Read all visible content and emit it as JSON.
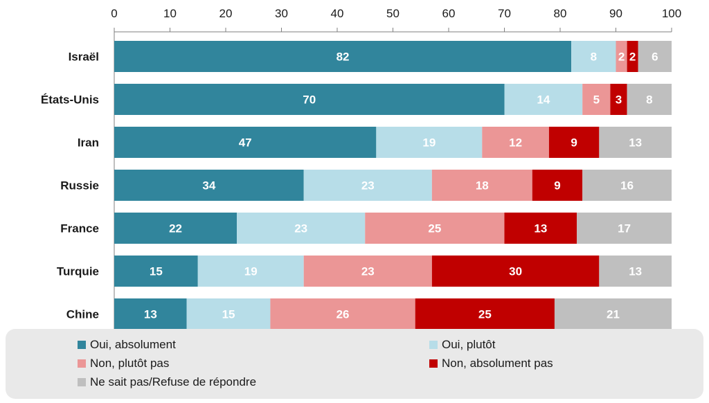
{
  "chart_data": {
    "type": "bar",
    "orientation": "horizontal",
    "stacked": true,
    "title": "",
    "xlabel": "",
    "ylabel": "",
    "xlim": [
      0,
      100
    ],
    "x_ticks": [
      0,
      10,
      20,
      30,
      40,
      50,
      60,
      70,
      80,
      90,
      100
    ],
    "x_axis_position": "top",
    "grid": false,
    "legend_position": "bottom",
    "categories": [
      "Israël",
      "États-Unis",
      "Iran",
      "Russie",
      "France",
      "Turquie",
      "Chine"
    ],
    "series": [
      {
        "name": "Oui, absolument",
        "color": "#31859c",
        "values": [
          82,
          70,
          47,
          34,
          22,
          15,
          13
        ]
      },
      {
        "name": "Oui, plutôt",
        "color": "#b7dde8",
        "values": [
          8,
          14,
          19,
          23,
          23,
          19,
          15
        ]
      },
      {
        "name": "Non, plutôt pas",
        "color": "#eb9696",
        "values": [
          2,
          5,
          12,
          18,
          25,
          23,
          26
        ]
      },
      {
        "name": "Non, absolument pas",
        "color": "#c00000",
        "values": [
          2,
          3,
          9,
          9,
          13,
          30,
          25
        ]
      },
      {
        "name": "Ne sait pas/Refuse de répondre",
        "color": "#bfbfbf",
        "values": [
          6,
          8,
          13,
          16,
          17,
          13,
          21
        ]
      }
    ]
  }
}
